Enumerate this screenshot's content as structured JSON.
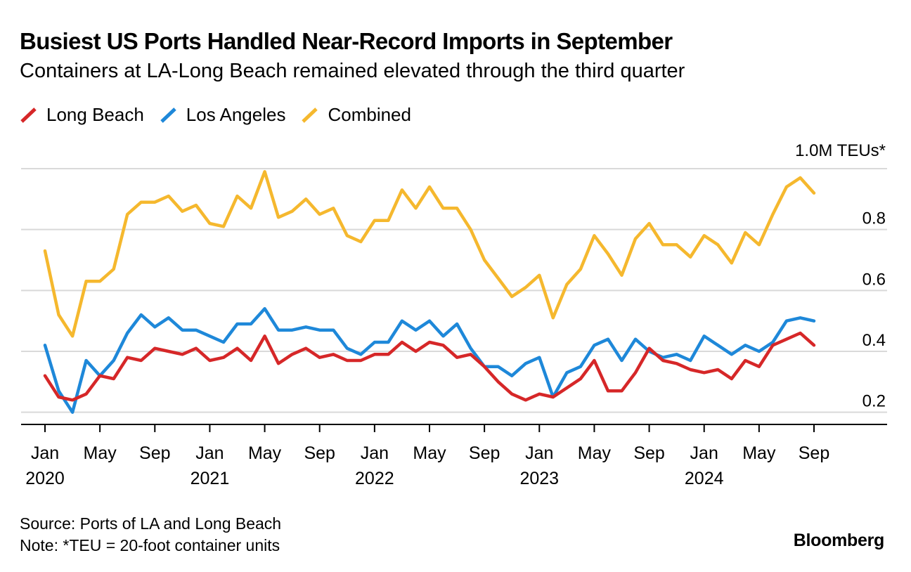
{
  "header": {
    "title": "Busiest US Ports Handled Near-Record Imports in September",
    "subtitle": "Containers at LA-Long Beach remained elevated through the third quarter"
  },
  "footer": {
    "source": "Source: Ports of LA and Long Beach",
    "note": "Note: *TEU = 20-foot container units",
    "logo": "Bloomberg"
  },
  "chart_data": {
    "type": "line",
    "title": "Busiest US Ports Handled Near-Record Imports in September",
    "subtitle": "Containers at LA-Long Beach remained elevated through the third quarter",
    "y_unit_label": "1.0M TEUs*",
    "ylim": [
      0.16,
      1.0
    ],
    "y_ticks": [
      {
        "value": 1.0,
        "label": ""
      },
      {
        "value": 0.8,
        "label": "0.8"
      },
      {
        "value": 0.6,
        "label": "0.6"
      },
      {
        "value": 0.4,
        "label": "0.4"
      },
      {
        "value": 0.2,
        "label": "0.2"
      }
    ],
    "grid": true,
    "legend_position": "top-left",
    "x_start": "2020-01",
    "x_end": "2024-09",
    "x_ticks": [
      {
        "month": "2020-01",
        "label": "Jan",
        "year": "2020"
      },
      {
        "month": "2020-05",
        "label": "May",
        "year": ""
      },
      {
        "month": "2020-09",
        "label": "Sep",
        "year": ""
      },
      {
        "month": "2021-01",
        "label": "Jan",
        "year": "2021"
      },
      {
        "month": "2021-05",
        "label": "May",
        "year": ""
      },
      {
        "month": "2021-09",
        "label": "Sep",
        "year": ""
      },
      {
        "month": "2022-01",
        "label": "Jan",
        "year": "2022"
      },
      {
        "month": "2022-05",
        "label": "May",
        "year": ""
      },
      {
        "month": "2022-09",
        "label": "Sep",
        "year": ""
      },
      {
        "month": "2023-01",
        "label": "Jan",
        "year": "2023"
      },
      {
        "month": "2023-05",
        "label": "May",
        "year": ""
      },
      {
        "month": "2023-09",
        "label": "Sep",
        "year": ""
      },
      {
        "month": "2024-01",
        "label": "Jan",
        "year": "2024"
      },
      {
        "month": "2024-05",
        "label": "May",
        "year": ""
      },
      {
        "month": "2024-09",
        "label": "Sep",
        "year": ""
      }
    ],
    "series": [
      {
        "name": "Long Beach",
        "color": "#d62728",
        "values": [
          0.32,
          0.25,
          0.24,
          0.26,
          0.32,
          0.31,
          0.38,
          0.37,
          0.41,
          0.4,
          0.39,
          0.41,
          0.37,
          0.38,
          0.41,
          0.37,
          0.45,
          0.36,
          0.39,
          0.41,
          0.38,
          0.39,
          0.37,
          0.37,
          0.39,
          0.39,
          0.43,
          0.4,
          0.43,
          0.42,
          0.38,
          0.39,
          0.35,
          0.3,
          0.26,
          0.24,
          0.26,
          0.25,
          0.28,
          0.31,
          0.37,
          0.27,
          0.27,
          0.33,
          0.41,
          0.37,
          0.36,
          0.34,
          0.33,
          0.34,
          0.31,
          0.37,
          0.35,
          0.42,
          0.44,
          0.46,
          0.42
        ]
      },
      {
        "name": "Los Angeles",
        "color": "#1e88d9",
        "values": [
          0.42,
          0.27,
          0.2,
          0.37,
          0.32,
          0.37,
          0.46,
          0.52,
          0.48,
          0.51,
          0.47,
          0.47,
          0.45,
          0.43,
          0.49,
          0.49,
          0.54,
          0.47,
          0.47,
          0.48,
          0.47,
          0.47,
          0.41,
          0.39,
          0.43,
          0.43,
          0.5,
          0.47,
          0.5,
          0.45,
          0.49,
          0.41,
          0.35,
          0.35,
          0.32,
          0.36,
          0.38,
          0.25,
          0.33,
          0.35,
          0.42,
          0.44,
          0.37,
          0.44,
          0.4,
          0.38,
          0.39,
          0.37,
          0.45,
          0.42,
          0.39,
          0.42,
          0.4,
          0.43,
          0.5,
          0.51,
          0.5
        ]
      },
      {
        "name": "Combined",
        "color": "#f5b82e",
        "values": [
          0.73,
          0.52,
          0.45,
          0.63,
          0.63,
          0.67,
          0.85,
          0.89,
          0.89,
          0.91,
          0.86,
          0.88,
          0.82,
          0.81,
          0.91,
          0.87,
          0.99,
          0.84,
          0.86,
          0.9,
          0.85,
          0.87,
          0.78,
          0.76,
          0.83,
          0.83,
          0.93,
          0.87,
          0.94,
          0.87,
          0.87,
          0.8,
          0.7,
          0.64,
          0.58,
          0.61,
          0.65,
          0.51,
          0.62,
          0.67,
          0.78,
          0.72,
          0.65,
          0.77,
          0.82,
          0.75,
          0.75,
          0.71,
          0.78,
          0.75,
          0.69,
          0.79,
          0.75,
          0.85,
          0.94,
          0.97,
          0.92
        ]
      }
    ]
  }
}
